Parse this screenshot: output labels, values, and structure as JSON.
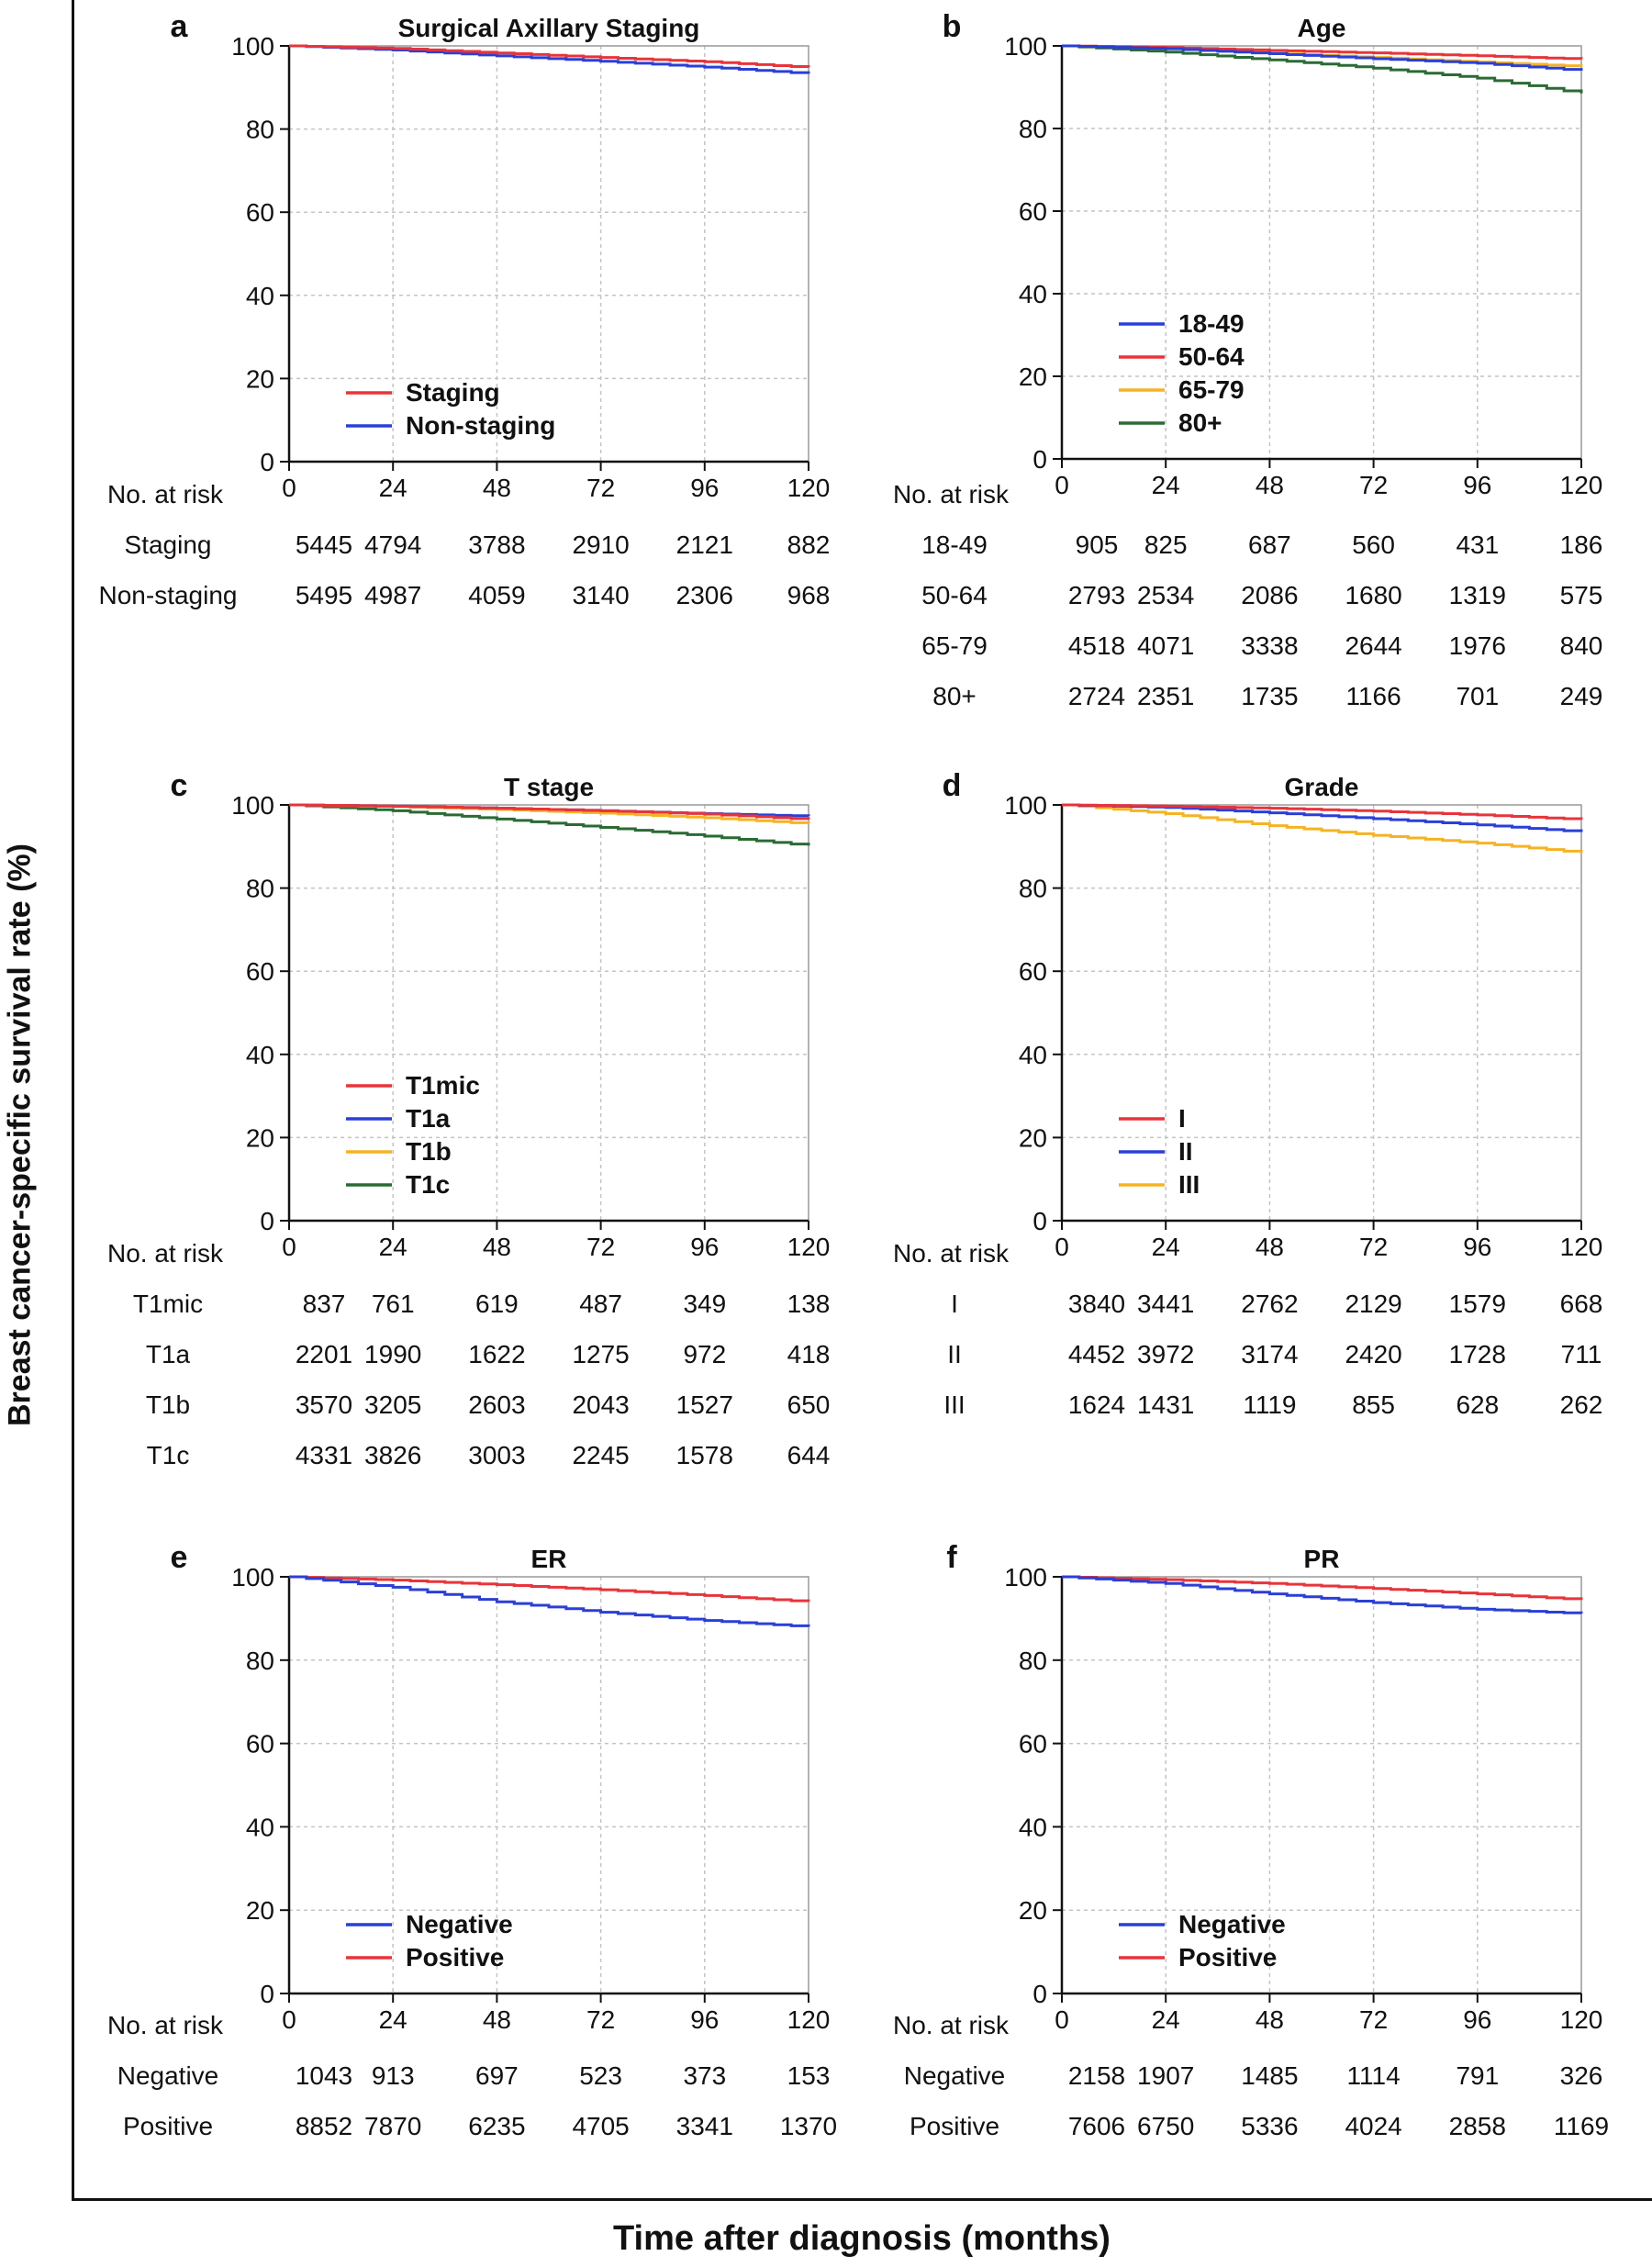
{
  "figure": {
    "y_title": "Breast cancer-specific survival rate (%)",
    "x_title": "Time after diagnosis (months)",
    "risk_header": "No. at risk"
  },
  "colors": {
    "red": "#e8343a",
    "blue": "#2a3fd6",
    "orange": "#f5b324",
    "green": "#2b6a34"
  },
  "chart_data": [
    {
      "panel": "a",
      "type": "line",
      "title": "Surgical Axillary Staging",
      "x": [
        0,
        24,
        48,
        72,
        96,
        120
      ],
      "xlim": [
        0,
        120
      ],
      "ylim": [
        0,
        100
      ],
      "xticks": [
        0,
        24,
        48,
        72,
        96,
        120
      ],
      "yticks": [
        0,
        20,
        40,
        60,
        80,
        100
      ],
      "grid": true,
      "legend_position": "lower-left",
      "series": [
        {
          "name": "Staging",
          "color": "#e8343a",
          "values": [
            100,
            99.4,
            98.3,
            97.2,
            96.2,
            94.8
          ]
        },
        {
          "name": "Non-staging",
          "color": "#2a3fd6",
          "values": [
            100,
            99.0,
            97.6,
            96.3,
            94.9,
            93.3
          ]
        }
      ],
      "risk_table": {
        "rows": [
          {
            "label": "Staging",
            "counts": [
              "5445",
              "4794",
              "3788",
              "2910",
              "2121",
              "882"
            ]
          },
          {
            "label": "Non-staging",
            "counts": [
              "5495",
              "4987",
              "4059",
              "3140",
              "2306",
              "968"
            ]
          }
        ]
      }
    },
    {
      "panel": "b",
      "type": "line",
      "title": "Age",
      "x": [
        0,
        24,
        48,
        72,
        96,
        120
      ],
      "xlim": [
        0,
        120
      ],
      "ylim": [
        0,
        100
      ],
      "xticks": [
        0,
        24,
        48,
        72,
        96,
        120
      ],
      "yticks": [
        0,
        20,
        40,
        60,
        80,
        100
      ],
      "grid": true,
      "legend_position": "lower-left",
      "series": [
        {
          "name": "18-49",
          "color": "#2a3fd6",
          "values": [
            100,
            99.3,
            98.1,
            96.9,
            95.8,
            94.0
          ]
        },
        {
          "name": "50-64",
          "color": "#e8343a",
          "values": [
            100,
            99.6,
            98.9,
            98.3,
            97.6,
            96.8
          ]
        },
        {
          "name": "65-79",
          "color": "#f5b324",
          "values": [
            100,
            99.4,
            98.2,
            97.2,
            96.1,
            95.0
          ]
        },
        {
          "name": "80+",
          "color": "#2b6a34",
          "values": [
            100,
            98.5,
            96.6,
            94.6,
            92.2,
            88.5
          ]
        }
      ],
      "risk_table": {
        "rows": [
          {
            "label": "18-49",
            "counts": [
              "905",
              "825",
              "687",
              "560",
              "431",
              "186"
            ]
          },
          {
            "label": "50-64",
            "counts": [
              "2793",
              "2534",
              "2086",
              "1680",
              "1319",
              "575"
            ]
          },
          {
            "label": "65-79",
            "counts": [
              "4518",
              "4071",
              "3338",
              "2644",
              "1976",
              "840"
            ]
          },
          {
            "label": "80+",
            "counts": [
              "2724",
              "2351",
              "1735",
              "1166",
              "701",
              "249"
            ]
          }
        ]
      }
    },
    {
      "panel": "c",
      "type": "line",
      "title": "T stage",
      "x": [
        0,
        24,
        48,
        72,
        96,
        120
      ],
      "xlim": [
        0,
        120
      ],
      "ylim": [
        0,
        100
      ],
      "xticks": [
        0,
        24,
        48,
        72,
        96,
        120
      ],
      "yticks": [
        0,
        20,
        40,
        60,
        80,
        100
      ],
      "grid": true,
      "legend_position": "lower-left",
      "series": [
        {
          "name": "T1mic",
          "color": "#e8343a",
          "values": [
            100,
            99.7,
            99.2,
            98.6,
            97.8,
            96.5
          ]
        },
        {
          "name": "T1a",
          "color": "#2a3fd6",
          "values": [
            100,
            99.7,
            99.2,
            98.6,
            97.9,
            97.3
          ]
        },
        {
          "name": "T1b",
          "color": "#f5b324",
          "values": [
            100,
            99.6,
            98.9,
            98.0,
            96.9,
            95.5
          ]
        },
        {
          "name": "T1c",
          "color": "#2b6a34",
          "values": [
            100,
            98.6,
            96.6,
            94.6,
            92.5,
            90.2
          ]
        }
      ],
      "risk_table": {
        "rows": [
          {
            "label": "T1mic",
            "counts": [
              "837",
              "761",
              "619",
              "487",
              "349",
              "138"
            ]
          },
          {
            "label": "T1a",
            "counts": [
              "2201",
              "1990",
              "1622",
              "1275",
              "972",
              "418"
            ]
          },
          {
            "label": "T1b",
            "counts": [
              "3570",
              "3205",
              "2603",
              "2043",
              "1527",
              "650"
            ]
          },
          {
            "label": "T1c",
            "counts": [
              "4331",
              "3826",
              "3003",
              "2245",
              "1578",
              "644"
            ]
          }
        ]
      }
    },
    {
      "panel": "d",
      "type": "line",
      "title": "Grade",
      "x": [
        0,
        24,
        48,
        72,
        96,
        120
      ],
      "xlim": [
        0,
        120
      ],
      "ylim": [
        0,
        100
      ],
      "xticks": [
        0,
        24,
        48,
        72,
        96,
        120
      ],
      "yticks": [
        0,
        20,
        40,
        60,
        80,
        100
      ],
      "grid": true,
      "legend_position": "lower-left",
      "series": [
        {
          "name": "I",
          "color": "#e8343a",
          "values": [
            100,
            99.7,
            99.2,
            98.5,
            97.6,
            96.5
          ]
        },
        {
          "name": "II",
          "color": "#2a3fd6",
          "values": [
            100,
            99.4,
            98.1,
            96.7,
            95.2,
            93.5
          ]
        },
        {
          "name": "III",
          "color": "#f5b324",
          "values": [
            100,
            97.9,
            95.0,
            92.7,
            90.8,
            88.5
          ]
        }
      ],
      "risk_table": {
        "rows": [
          {
            "label": "I",
            "counts": [
              "3840",
              "3441",
              "2762",
              "2129",
              "1579",
              "668"
            ]
          },
          {
            "label": "II",
            "counts": [
              "4452",
              "3972",
              "3174",
              "2420",
              "1728",
              "711"
            ]
          },
          {
            "label": "III",
            "counts": [
              "1624",
              "1431",
              "1119",
              "855",
              "628",
              "262"
            ]
          }
        ]
      }
    },
    {
      "panel": "e",
      "type": "line",
      "title": "ER",
      "x": [
        0,
        24,
        48,
        72,
        96,
        120
      ],
      "xlim": [
        0,
        120
      ],
      "ylim": [
        0,
        100
      ],
      "xticks": [
        0,
        24,
        48,
        72,
        96,
        120
      ],
      "yticks": [
        0,
        20,
        40,
        60,
        80,
        100
      ],
      "grid": true,
      "legend_position": "lower-left",
      "series": [
        {
          "name": "Negative",
          "color": "#2a3fd6",
          "values": [
            100,
            97.5,
            94.0,
            91.5,
            89.5,
            88.0
          ]
        },
        {
          "name": "Positive",
          "color": "#e8343a",
          "values": [
            100,
            99.2,
            98.1,
            96.9,
            95.5,
            94.0
          ]
        }
      ],
      "risk_table": {
        "rows": [
          {
            "label": "Negative",
            "counts": [
              "1043",
              "913",
              "697",
              "523",
              "373",
              "153"
            ]
          },
          {
            "label": "Positive",
            "counts": [
              "8852",
              "7870",
              "6235",
              "4705",
              "3341",
              "1370"
            ]
          }
        ]
      }
    },
    {
      "panel": "f",
      "type": "line",
      "title": "PR",
      "x": [
        0,
        24,
        48,
        72,
        96,
        120
      ],
      "xlim": [
        0,
        120
      ],
      "ylim": [
        0,
        100
      ],
      "xticks": [
        0,
        24,
        48,
        72,
        96,
        120
      ],
      "yticks": [
        0,
        20,
        40,
        60,
        80,
        100
      ],
      "grid": true,
      "legend_position": "lower-left",
      "series": [
        {
          "name": "Negative",
          "color": "#2a3fd6",
          "values": [
            100,
            98.4,
            95.9,
            93.8,
            92.2,
            91.2
          ]
        },
        {
          "name": "Positive",
          "color": "#e8343a",
          "values": [
            100,
            99.3,
            98.4,
            97.2,
            95.9,
            94.5
          ]
        }
      ],
      "risk_table": {
        "rows": [
          {
            "label": "Negative",
            "counts": [
              "2158",
              "1907",
              "1485",
              "1114",
              "791",
              "326"
            ]
          },
          {
            "label": "Positive",
            "counts": [
              "7606",
              "6750",
              "5336",
              "4024",
              "2858",
              "1169"
            ]
          }
        ]
      }
    }
  ]
}
